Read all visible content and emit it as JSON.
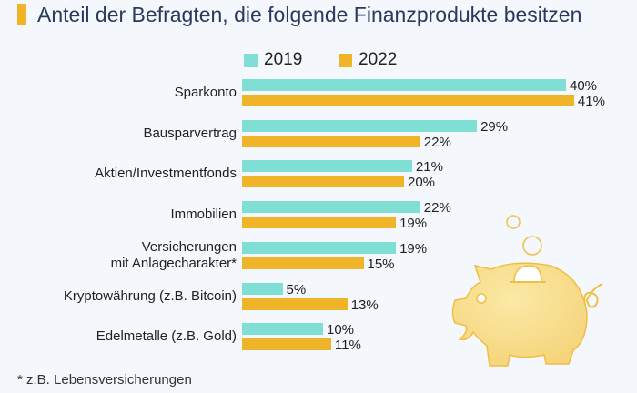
{
  "title": "Anteil der Befragten, die folgende Finanzprodukte besitzen",
  "footnote": "* z.B. Lebensversicherungen",
  "chart_data": {
    "type": "bar",
    "orientation": "horizontal",
    "title": "Anteil der Befragten, die folgende Finanzprodukte besitzen",
    "categories": [
      "Sparkonto",
      "Bausparvertrag",
      "Aktien/Investmentfonds",
      "Immobilien",
      "Versicherungen mit Anlagecharakter*",
      "Kryptowährung (z.B. Bitcoin)",
      "Edelmetalle (z.B. Gold)"
    ],
    "category_lines": [
      [
        "Sparkonto"
      ],
      [
        "Bausparvertrag"
      ],
      [
        "Aktien/Investmentfonds"
      ],
      [
        "Immobilien"
      ],
      [
        "Versicherungen",
        "mit Anlagecharakter*"
      ],
      [
        "Kryptowährung (z.B. Bitcoin)"
      ],
      [
        "Edelmetalle (z.B. Gold)"
      ]
    ],
    "series": [
      {
        "name": "2019",
        "color": "#7fdfd4",
        "values": [
          40,
          29,
          21,
          22,
          19,
          5,
          10
        ]
      },
      {
        "name": "2022",
        "color": "#f0b429",
        "values": [
          41,
          22,
          20,
          19,
          15,
          13,
          11
        ]
      }
    ],
    "value_suffix": "%",
    "legend": "top",
    "grid": false
  }
}
